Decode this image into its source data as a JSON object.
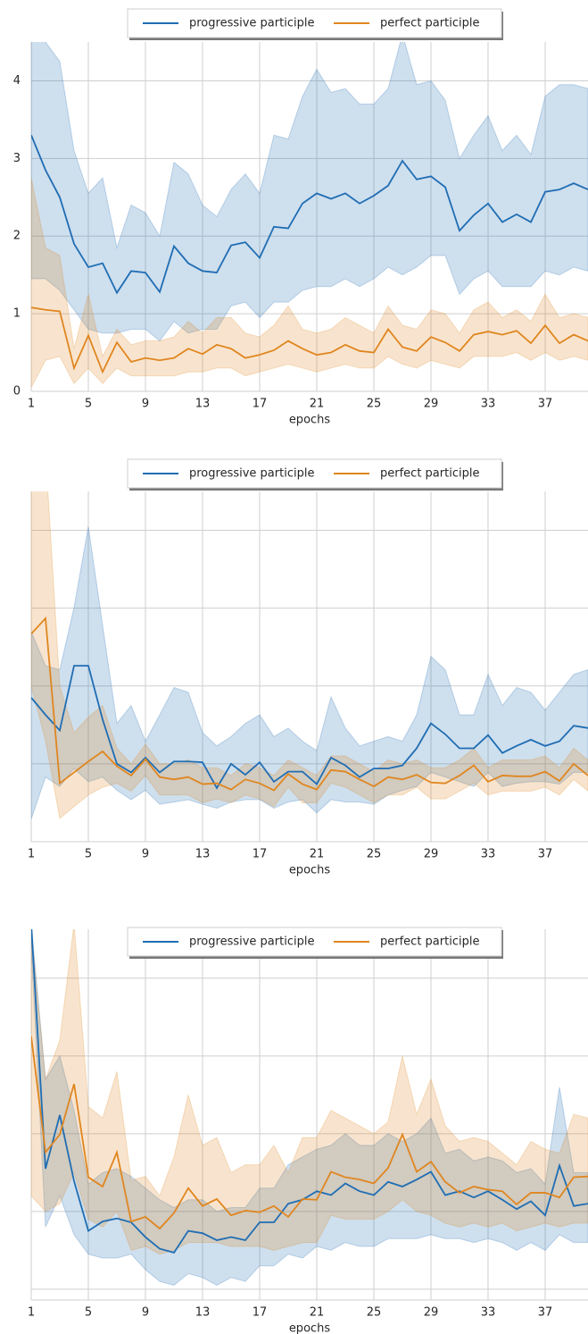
{
  "chart_data": [
    {
      "type": "line",
      "xlabel": "epochs",
      "x": [
        1,
        2,
        3,
        4,
        5,
        6,
        7,
        8,
        9,
        10,
        11,
        12,
        13,
        14,
        15,
        16,
        17,
        18,
        19,
        20,
        21,
        22,
        23,
        24,
        25,
        26,
        27,
        28,
        29,
        30,
        31,
        32,
        33,
        34,
        35,
        36,
        37,
        38,
        39,
        40
      ],
      "xlim": [
        1,
        40
      ],
      "xticks": [
        1,
        5,
        9,
        13,
        17,
        21,
        25,
        29,
        33,
        37
      ],
      "ylim": [
        0,
        4.5
      ],
      "yticks": [
        0,
        1,
        2,
        3,
        4
      ],
      "show_ytick_labels": true,
      "grid": true,
      "legend": "upper center",
      "series": [
        {
          "name": "progressive participle",
          "color": "#1f6db3",
          "values": [
            3.3,
            2.85,
            2.5,
            1.9,
            1.6,
            1.65,
            1.27,
            1.55,
            1.53,
            1.28,
            1.87,
            1.65,
            1.55,
            1.53,
            1.88,
            1.92,
            1.72,
            2.12,
            2.1,
            2.42,
            2.55,
            2.48,
            2.55,
            2.42,
            2.52,
            2.65,
            2.97,
            2.73,
            2.77,
            2.63,
            2.07,
            2.27,
            2.42,
            2.18,
            2.28,
            2.18,
            2.57,
            2.6,
            2.68,
            2.6
          ],
          "upper": [
            4.6,
            4.5,
            4.25,
            3.1,
            2.55,
            2.75,
            1.85,
            2.4,
            2.3,
            2.0,
            2.95,
            2.8,
            2.4,
            2.25,
            2.6,
            2.8,
            2.55,
            3.3,
            3.25,
            3.8,
            4.15,
            3.85,
            3.9,
            3.7,
            3.7,
            3.9,
            4.6,
            3.95,
            4.0,
            3.75,
            3.0,
            3.3,
            3.55,
            3.1,
            3.3,
            3.05,
            3.8,
            3.95,
            3.95,
            3.9
          ],
          "lower": [
            1.45,
            1.45,
            1.3,
            1.05,
            0.8,
            0.75,
            0.75,
            0.8,
            0.8,
            0.65,
            0.9,
            0.75,
            0.8,
            0.8,
            1.1,
            1.15,
            0.95,
            1.15,
            1.15,
            1.3,
            1.35,
            1.35,
            1.45,
            1.35,
            1.45,
            1.6,
            1.5,
            1.6,
            1.75,
            1.75,
            1.25,
            1.45,
            1.55,
            1.35,
            1.35,
            1.35,
            1.55,
            1.5,
            1.6,
            1.55
          ]
        },
        {
          "name": "perfect participle",
          "color": "#e0861f",
          "values": [
            1.08,
            1.05,
            1.03,
            0.3,
            0.72,
            0.25,
            0.63,
            0.38,
            0.43,
            0.4,
            0.43,
            0.55,
            0.48,
            0.6,
            0.55,
            0.43,
            0.47,
            0.53,
            0.65,
            0.55,
            0.47,
            0.5,
            0.6,
            0.52,
            0.5,
            0.8,
            0.57,
            0.52,
            0.7,
            0.63,
            0.52,
            0.73,
            0.77,
            0.73,
            0.78,
            0.62,
            0.85,
            0.62,
            0.73,
            0.65
          ],
          "upper": [
            2.75,
            1.85,
            1.75,
            0.55,
            1.25,
            0.45,
            0.8,
            0.6,
            0.65,
            0.65,
            0.7,
            0.9,
            0.75,
            0.95,
            0.95,
            0.75,
            0.7,
            0.85,
            1.1,
            0.8,
            0.75,
            0.8,
            0.95,
            0.85,
            0.75,
            1.1,
            0.85,
            0.8,
            1.05,
            1.0,
            0.75,
            1.05,
            1.15,
            0.95,
            1.05,
            0.9,
            1.25,
            0.95,
            1.0,
            0.95
          ],
          "lower": [
            0.05,
            0.4,
            0.45,
            0.1,
            0.3,
            0.1,
            0.3,
            0.2,
            0.2,
            0.2,
            0.2,
            0.25,
            0.25,
            0.3,
            0.3,
            0.2,
            0.25,
            0.3,
            0.35,
            0.3,
            0.25,
            0.3,
            0.35,
            0.3,
            0.3,
            0.45,
            0.35,
            0.3,
            0.4,
            0.35,
            0.3,
            0.45,
            0.45,
            0.45,
            0.5,
            0.4,
            0.5,
            0.4,
            0.45,
            0.4
          ]
        }
      ]
    },
    {
      "type": "line",
      "xlabel": "epochs",
      "x": [
        1,
        2,
        3,
        4,
        5,
        6,
        7,
        8,
        9,
        10,
        11,
        12,
        13,
        14,
        15,
        16,
        17,
        18,
        19,
        20,
        21,
        22,
        23,
        24,
        25,
        26,
        27,
        28,
        29,
        30,
        31,
        32,
        33,
        34,
        35,
        36,
        37,
        38,
        39,
        40
      ],
      "xlim": [
        1,
        40
      ],
      "xticks": [
        1,
        5,
        9,
        13,
        17,
        21,
        25,
        29,
        33,
        37
      ],
      "ylim": [
        0,
        4.5
      ],
      "yticks": [
        0,
        1,
        2,
        3,
        4
      ],
      "show_ytick_labels": false,
      "grid": true,
      "legend": "upper center",
      "series": [
        {
          "name": "progressive participle",
          "color": "#1f6db3",
          "values": [
            1.85,
            1.63,
            1.43,
            2.26,
            2.26,
            1.57,
            1.0,
            0.89,
            1.08,
            0.89,
            1.03,
            1.03,
            1.02,
            0.69,
            1.0,
            0.86,
            1.02,
            0.77,
            0.9,
            0.9,
            0.74,
            1.08,
            0.98,
            0.83,
            0.94,
            0.94,
            0.98,
            1.2,
            1.52,
            1.38,
            1.2,
            1.2,
            1.37,
            1.14,
            1.23,
            1.31,
            1.23,
            1.29,
            1.49,
            1.46
          ],
          "upper": [
            2.7,
            2.26,
            2.21,
            3.01,
            4.05,
            2.78,
            1.52,
            1.75,
            1.29,
            1.63,
            1.98,
            1.92,
            1.4,
            1.23,
            1.35,
            1.52,
            1.63,
            1.35,
            1.46,
            1.29,
            1.17,
            1.86,
            1.46,
            1.23,
            1.29,
            1.35,
            1.29,
            1.63,
            2.38,
            2.21,
            1.63,
            1.63,
            2.15,
            1.75,
            1.98,
            1.92,
            1.69,
            1.92,
            2.15,
            2.21
          ],
          "lower": [
            0.29,
            0.83,
            0.71,
            0.94,
            0.77,
            0.83,
            0.66,
            0.54,
            0.66,
            0.48,
            0.51,
            0.54,
            0.48,
            0.43,
            0.51,
            0.54,
            0.54,
            0.43,
            0.51,
            0.54,
            0.37,
            0.54,
            0.51,
            0.51,
            0.48,
            0.6,
            0.66,
            0.71,
            0.89,
            0.83,
            0.77,
            0.71,
            0.89,
            0.71,
            0.75,
            0.77,
            0.77,
            0.74,
            0.89,
            0.89
          ]
        },
        {
          "name": "perfect participle",
          "color": "#e0861f",
          "values": [
            2.67,
            2.87,
            0.75,
            0.89,
            1.03,
            1.16,
            0.97,
            0.85,
            1.06,
            0.83,
            0.8,
            0.83,
            0.74,
            0.75,
            0.67,
            0.8,
            0.75,
            0.66,
            0.87,
            0.74,
            0.67,
            0.92,
            0.9,
            0.8,
            0.71,
            0.83,
            0.8,
            0.86,
            0.76,
            0.75,
            0.85,
            0.98,
            0.77,
            0.85,
            0.84,
            0.84,
            0.9,
            0.78,
            1.0,
            0.85
          ],
          "upper": [
            4.8,
            5.0,
            2.0,
            1.4,
            1.6,
            1.75,
            1.2,
            1.0,
            1.25,
            1.0,
            1.0,
            1.05,
            0.95,
            0.95,
            0.85,
            1.0,
            0.95,
            0.85,
            1.05,
            0.95,
            0.85,
            1.1,
            1.1,
            1.0,
            0.9,
            1.05,
            1.0,
            1.05,
            0.95,
            0.95,
            1.05,
            1.2,
            0.95,
            1.05,
            1.05,
            1.05,
            1.1,
            0.95,
            1.2,
            1.05
          ],
          "lower": [
            2.0,
            1.3,
            0.3,
            0.45,
            0.6,
            0.7,
            0.75,
            0.65,
            0.85,
            0.6,
            0.6,
            0.6,
            0.5,
            0.55,
            0.5,
            0.6,
            0.55,
            0.45,
            0.7,
            0.5,
            0.5,
            0.75,
            0.7,
            0.6,
            0.5,
            0.6,
            0.6,
            0.7,
            0.55,
            0.55,
            0.65,
            0.75,
            0.6,
            0.65,
            0.65,
            0.65,
            0.7,
            0.6,
            0.8,
            0.65
          ]
        }
      ]
    },
    {
      "type": "line",
      "xlabel": "epochs",
      "x": [
        1,
        2,
        3,
        4,
        5,
        6,
        7,
        8,
        9,
        10,
        11,
        12,
        13,
        14,
        15,
        16,
        17,
        18,
        19,
        20,
        21,
        22,
        23,
        24,
        25,
        26,
        27,
        28,
        29,
        30,
        31,
        32,
        33,
        34,
        35,
        36,
        37,
        38,
        39,
        40
      ],
      "xlim": [
        1,
        40
      ],
      "xticks": [
        1,
        5,
        9,
        13,
        17,
        21,
        25,
        29,
        33,
        37
      ],
      "ylim": [
        -0.14,
        4.63
      ],
      "yticks": [
        0,
        1,
        2,
        3,
        4
      ],
      "show_ytick_labels": false,
      "grid": true,
      "legend": "upper center",
      "series": [
        {
          "name": "progressive participle",
          "color": "#1f6db3",
          "values": [
            4.7,
            1.55,
            2.24,
            1.39,
            0.75,
            0.87,
            0.91,
            0.86,
            0.67,
            0.52,
            0.47,
            0.75,
            0.72,
            0.63,
            0.67,
            0.63,
            0.86,
            0.86,
            1.1,
            1.15,
            1.26,
            1.21,
            1.36,
            1.26,
            1.21,
            1.38,
            1.32,
            1.41,
            1.51,
            1.21,
            1.26,
            1.18,
            1.26,
            1.15,
            1.03,
            1.13,
            0.95,
            1.59,
            1.07,
            1.1
          ],
          "upper": [
            4.7,
            2.7,
            3.0,
            2.3,
            1.35,
            1.5,
            1.55,
            1.45,
            1.3,
            1.15,
            1.05,
            1.15,
            1.15,
            1.0,
            1.05,
            1.05,
            1.3,
            1.3,
            1.6,
            1.7,
            1.8,
            1.85,
            2.0,
            1.85,
            1.85,
            2.0,
            1.9,
            2.0,
            2.2,
            1.75,
            1.8,
            1.65,
            1.7,
            1.65,
            1.5,
            1.55,
            1.35,
            2.6,
            1.5,
            1.5
          ],
          "lower": [
            4.4,
            0.8,
            1.2,
            0.7,
            0.45,
            0.4,
            0.4,
            0.45,
            0.25,
            0.1,
            0.05,
            0.2,
            0.15,
            0.05,
            0.15,
            0.1,
            0.3,
            0.3,
            0.45,
            0.4,
            0.55,
            0.5,
            0.6,
            0.55,
            0.55,
            0.65,
            0.65,
            0.65,
            0.7,
            0.65,
            0.65,
            0.6,
            0.65,
            0.6,
            0.5,
            0.6,
            0.5,
            0.7,
            0.6,
            0.6
          ]
        },
        {
          "name": "perfect participle",
          "color": "#e0861f",
          "values": [
            3.25,
            1.76,
            1.99,
            2.64,
            1.44,
            1.32,
            1.76,
            0.87,
            0.93,
            0.78,
            0.98,
            1.3,
            1.07,
            1.16,
            0.95,
            1.01,
            0.99,
            1.07,
            0.93,
            1.16,
            1.15,
            1.51,
            1.44,
            1.41,
            1.36,
            1.56,
            1.99,
            1.51,
            1.64,
            1.38,
            1.24,
            1.32,
            1.28,
            1.26,
            1.09,
            1.24,
            1.24,
            1.18,
            1.44,
            1.45
          ],
          "upper": [
            4.6,
            2.7,
            3.2,
            4.7,
            2.35,
            2.2,
            2.8,
            1.4,
            1.45,
            1.2,
            1.7,
            2.5,
            1.85,
            1.95,
            1.5,
            1.6,
            1.6,
            1.85,
            1.5,
            1.95,
            1.95,
            2.3,
            2.2,
            2.1,
            2.0,
            2.15,
            3.0,
            2.25,
            2.7,
            2.1,
            1.9,
            1.95,
            1.9,
            1.75,
            1.6,
            1.9,
            1.8,
            1.75,
            2.25,
            2.2
          ],
          "lower": [
            1.2,
            1.0,
            1.1,
            1.5,
            0.9,
            0.8,
            1.0,
            0.5,
            0.55,
            0.45,
            0.5,
            0.6,
            0.6,
            0.6,
            0.55,
            0.55,
            0.55,
            0.5,
            0.55,
            0.6,
            0.6,
            0.95,
            0.9,
            0.9,
            0.9,
            1.0,
            1.15,
            1.0,
            0.95,
            0.85,
            0.8,
            0.85,
            0.8,
            0.85,
            0.75,
            0.8,
            0.85,
            0.8,
            0.85,
            0.85
          ]
        }
      ]
    }
  ]
}
